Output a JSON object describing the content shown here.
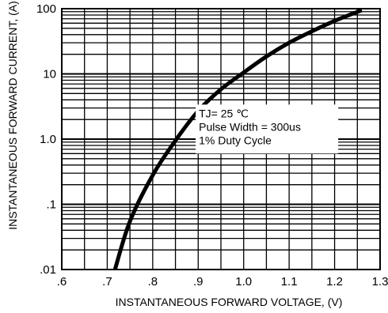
{
  "chart_data": {
    "type": "line",
    "title": "",
    "xlabel": "INSTANTANEOUS FORWARD VOLTAGE, (V)",
    "ylabel": "INSTANTANEOUS FORWARD CURRENT, (A)",
    "xlim": [
      0.6,
      1.3
    ],
    "ylim": [
      0.01,
      100
    ],
    "yscale": "log",
    "grid": true,
    "x_ticks": [
      ".6",
      ".7",
      ".8",
      ".9",
      "1.0",
      "1.1",
      "1.2",
      "1.3"
    ],
    "y_ticks": [
      ".01",
      ".1",
      "1.0",
      "10",
      "100"
    ],
    "annotation": [
      "TJ= 25 ℃",
      "Pulse Width = 300us",
      "1% Duty Cycle"
    ],
    "legend": "none",
    "series": [
      {
        "x": [
          0.717,
          0.75,
          0.8,
          0.85,
          0.9,
          0.95,
          1.0,
          1.05,
          1.1,
          1.15,
          1.2,
          1.26
        ],
        "y": [
          0.01,
          0.055,
          0.28,
          0.95,
          2.7,
          5.8,
          10.5,
          18.5,
          30,
          45,
          65,
          95
        ]
      }
    ]
  }
}
